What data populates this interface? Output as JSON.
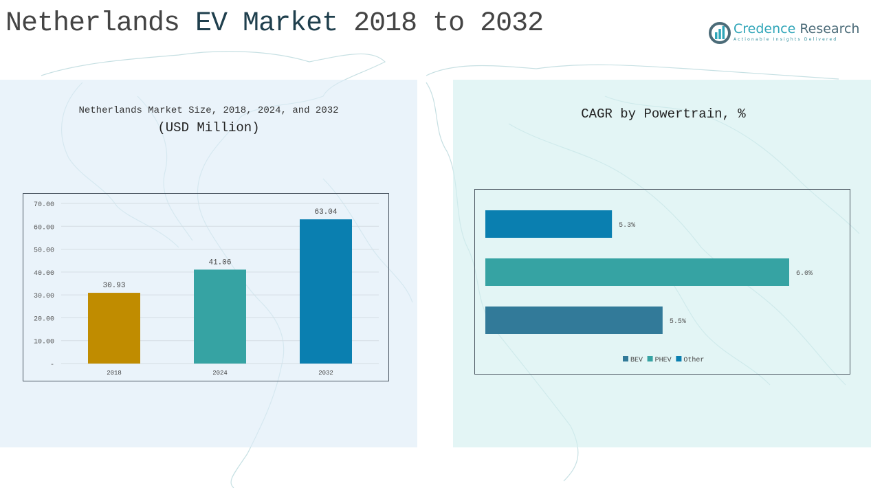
{
  "header": {
    "title_part1": "Netherlands ",
    "title_part2": "EV Market",
    "title_part3": " 2018 to 2032"
  },
  "logo": {
    "name_part1": "Credence",
    "name_part2": " Research",
    "tagline": "Actionable Insights Delivered",
    "icon": "bar-chart-circle-icon"
  },
  "chart_data": [
    {
      "type": "bar",
      "title": "Netherlands Market Size, 2018, 2024, and 2032",
      "subtitle": "(USD Million)",
      "categories": [
        "2018",
        "2024",
        "2032"
      ],
      "values": [
        30.93,
        41.06,
        63.04
      ],
      "value_labels": [
        "30.93",
        "41.06",
        "63.04"
      ],
      "colors": [
        "#c08c00",
        "#36a3a3",
        "#0a7fb0"
      ],
      "xlabel": "",
      "ylabel": "",
      "ylim": [
        0,
        70
      ],
      "yticks": [
        0,
        10,
        20,
        30,
        40,
        50,
        60,
        70
      ],
      "ytick_labels": [
        "-",
        "10.00",
        "20.00",
        "30.00",
        "40.00",
        "50.00",
        "60.00",
        "70.00"
      ],
      "grid": true,
      "legend": "none"
    },
    {
      "type": "bar",
      "orientation": "horizontal",
      "title": "CAGR by Powertrain, %",
      "categories": [
        "Other",
        "PHEV",
        "BEV"
      ],
      "values": [
        5.3,
        6.0,
        5.5
      ],
      "value_labels": [
        "5.3%",
        "6.0%",
        "5.5%"
      ],
      "colors": [
        "#0a7fb0",
        "#36a3a3",
        "#327a99"
      ],
      "xlim": [
        4.8,
        6.0
      ],
      "grid": false,
      "legend": "bottom-center",
      "legend_entries": [
        {
          "label": "BEV",
          "color": "#327a99"
        },
        {
          "label": "PHEV",
          "color": "#36a3a3"
        },
        {
          "label": "Other",
          "color": "#0a7fb0"
        }
      ]
    }
  ]
}
